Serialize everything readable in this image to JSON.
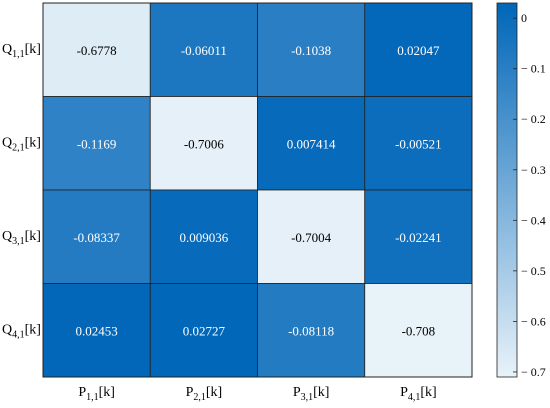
{
  "chart_data": {
    "type": "heatmap",
    "title": "",
    "xlabel": "",
    "ylabel": "",
    "x_categories": [
      {
        "base": "P",
        "sub": "1,1",
        "suffix": "[k]"
      },
      {
        "base": "P",
        "sub": "2,1",
        "suffix": "[k]"
      },
      {
        "base": "P",
        "sub": "3,1",
        "suffix": "[k]"
      },
      {
        "base": "P",
        "sub": "4,1",
        "suffix": "[k]"
      }
    ],
    "y_categories": [
      {
        "base": "Q",
        "sub": "1,1",
        "suffix": "[k]"
      },
      {
        "base": "Q",
        "sub": "2,1",
        "suffix": "[k]"
      },
      {
        "base": "Q",
        "sub": "3,1",
        "suffix": "[k]"
      },
      {
        "base": "Q",
        "sub": "4,1",
        "suffix": "[k]"
      }
    ],
    "values": [
      [
        -0.6778,
        -0.06011,
        -0.1038,
        0.02047
      ],
      [
        -0.1169,
        -0.7006,
        0.007414,
        -0.00521
      ],
      [
        -0.08337,
        0.009036,
        -0.7004,
        -0.02241
      ],
      [
        0.02453,
        0.02727,
        -0.08118,
        -0.708
      ]
    ],
    "value_labels": [
      [
        "-0.6778",
        "-0.06011",
        "-0.1038",
        "0.02047"
      ],
      [
        "-0.1169",
        "-0.7006",
        "0.007414",
        "-0.00521"
      ],
      [
        "-0.08337",
        "0.009036",
        "-0.7004",
        "-0.02241"
      ],
      [
        "0.02453",
        "0.02727",
        "-0.08118",
        "-0.708"
      ]
    ],
    "colorbar": {
      "range": [
        -0.71,
        0.03
      ],
      "ticks": [
        0,
        -0.1,
        -0.2,
        -0.3,
        -0.4,
        -0.5,
        -0.6,
        -0.7
      ],
      "tick_labels": [
        "0",
        "− 0.1",
        "− 0.2",
        "− 0.3",
        "− 0.4",
        "− 0.5",
        "− 0.6",
        "− 0.7"
      ],
      "placement": "right",
      "color_high": "#0066b8",
      "color_low": "#e8f2f9"
    },
    "grid": true
  }
}
